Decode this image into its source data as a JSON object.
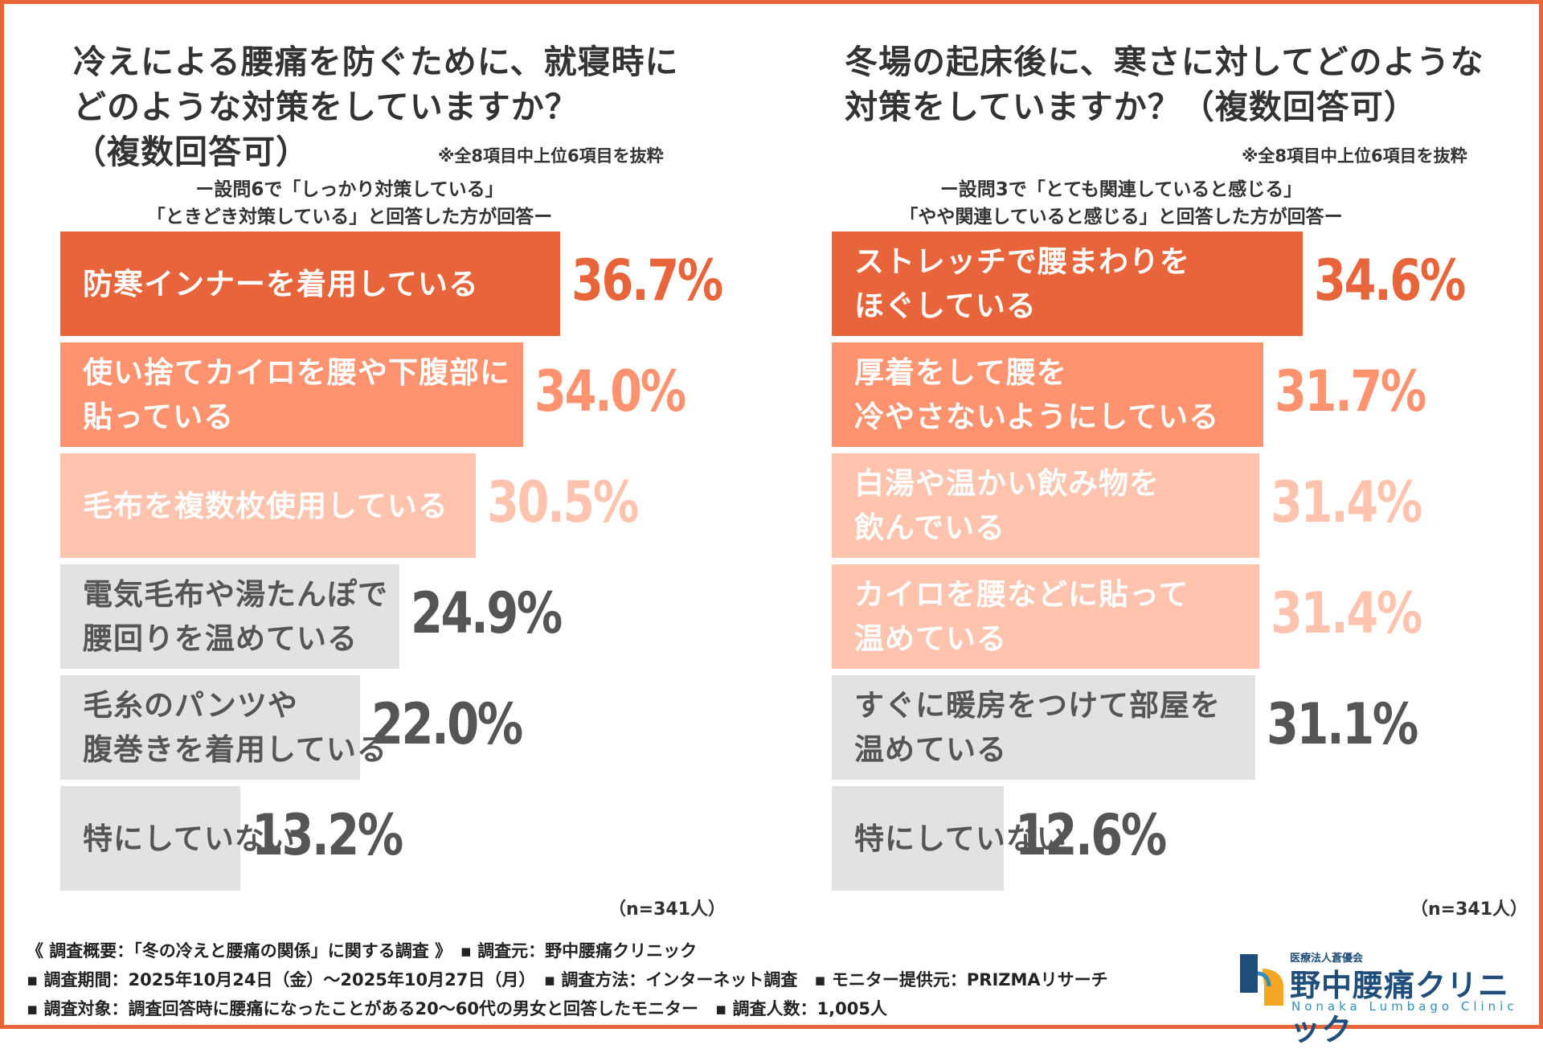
{
  "chart_data": [
    {
      "type": "bar",
      "title": "冷えによる腰痛を防ぐために、就寝時に\nどのような対策をしていますか？\n（複数回答可）",
      "note": "※全8項目中上位6項目を抜粋",
      "subtitle": "ー設問6で「しっかり対策している」\n「ときどき対策している」と回答した方が回答ー",
      "categories": [
        "防寒インナーを着用している",
        "使い捨てカイロを腰や下腹部に\n貼っている",
        "毛布を複数枚使用している",
        "電気毛布や湯たんぽで\n腰回りを温めている",
        "毛糸のパンツや\n腹巻きを着用している",
        "特にしていない"
      ],
      "values": [
        36.7,
        34.0,
        30.5,
        24.9,
        22.0,
        13.2
      ],
      "value_labels": [
        "36.7%",
        "34.0%",
        "30.5%",
        "24.9%",
        "22.0%",
        "13.2%"
      ],
      "sample": "（n=341人）"
    },
    {
      "type": "bar",
      "title": "冬場の起床後に、寒さに対してどのような\n対策をしていますか？（複数回答可）",
      "note": "※全8項目中上位6項目を抜粋",
      "subtitle": "ー設問3で「とても関連していると感じる」\n「やや関連していると感じる」と回答した方が回答ー",
      "categories": [
        "ストレッチで腰まわりを\nほぐしている",
        "厚着をして腰を\n冷やさないようにしている",
        "白湯や温かい飲み物を\n飲んでいる",
        "カイロを腰などに貼って\n温めている",
        "すぐに暖房をつけて部屋を\n温めている",
        "特にしていない"
      ],
      "values": [
        34.6,
        31.7,
        31.4,
        31.4,
        31.1,
        12.6
      ],
      "value_labels": [
        "34.6%",
        "31.7%",
        "31.4%",
        "31.4%",
        "31.1%",
        "12.6%"
      ],
      "sample": "（n=341人）"
    }
  ],
  "colors": {
    "bar_fill": [
      "#E8643A",
      "#FF9370",
      "#FFC3AE",
      "#E2E2E2",
      "#E2E2E2",
      "#E2E2E2"
    ],
    "value_text": [
      "#E8643A",
      "#FF9370",
      "#FFC3AE",
      "#555555",
      "#555555",
      "#555555"
    ],
    "label_text": [
      "#FFFFFF",
      "#FFFFFF",
      "#FFFFFF",
      "#555555",
      "#555555",
      "#555555"
    ],
    "right_bar_fill": [
      "#E8643A",
      "#FF9370",
      "#FFC3AE",
      "#FFC3AE",
      "#E2E2E2",
      "#E2E2E2"
    ],
    "right_value_text": [
      "#E8643A",
      "#FF9370",
      "#FFC3AE",
      "#FFC3AE",
      "#555555",
      "#555555"
    ],
    "right_label_text": [
      "#FFFFFF",
      "#FFFFFF",
      "#FFFFFF",
      "#FFFFFF",
      "#555555",
      "#555555"
    ],
    "border": "#E8643A"
  },
  "footer": {
    "line1": "《 調査概要：「冬の冷えと腰痛の関係」に関する調査 》　▪ 調査元：野中腰痛クリニック",
    "line2": "▪ 調査期間：2025年10月24日（金）～2025年10月27日（月）　▪ 調査方法：インターネット調査　▪ モニター提供元：PRIZMAリサーチ",
    "line3": "▪ 調査対象：調査回答時に腰痛になったことがある20～60代の男女と回答したモニター　▪ 調査人数：1,005人"
  },
  "logo": {
    "sub": "医療法人蒼優会",
    "main": "野中腰痛クリニック",
    "en": "Nonaka Lumbago Clinic"
  }
}
